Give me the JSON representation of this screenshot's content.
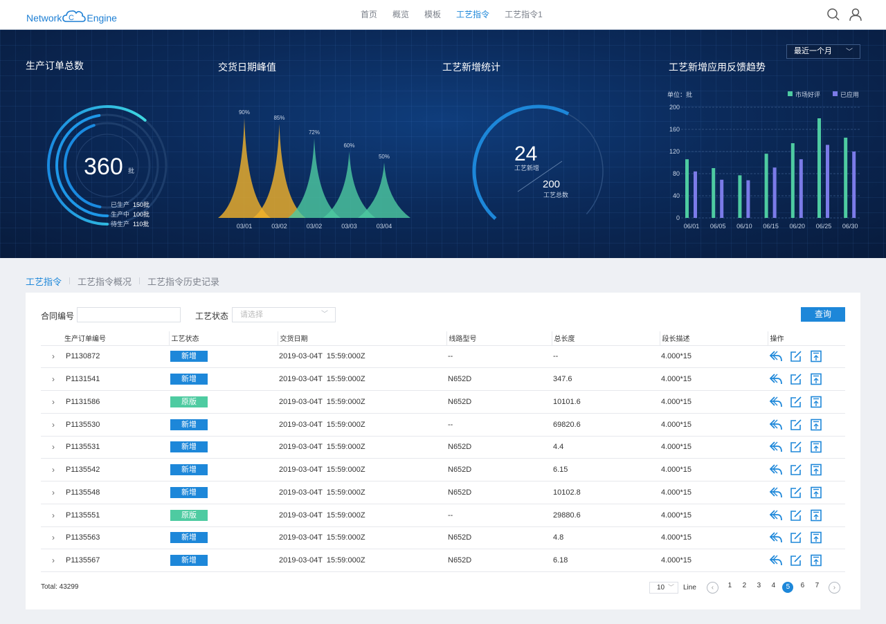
{
  "header": {
    "logo_left": "Network",
    "logo_right": "Engine",
    "nav": [
      "首页",
      "概览",
      "模板",
      "工艺指令",
      "工艺指令1"
    ],
    "active_nav": 3
  },
  "dashboard": {
    "period_select": "最近一个月",
    "orders": {
      "title": "生产订单总数",
      "total": "360",
      "unit": "批",
      "items": [
        {
          "label": "已生产",
          "value": "150批",
          "fraction": 0.42
        },
        {
          "label": "生产中",
          "value": "100批",
          "fraction": 0.28
        },
        {
          "label": "待生产",
          "value": "110批",
          "fraction": 0.31
        }
      ]
    },
    "delivery": {
      "title": "交货日期峰值"
    },
    "process_stats": {
      "title": "工艺新增统计",
      "new_value": "24",
      "new_label": "工艺新增",
      "total_value": "200",
      "total_label": "工艺总数",
      "fraction": 0.12
    },
    "trend": {
      "title": "工艺新增应用反馈趋势",
      "unit_label": "单位：批"
    }
  },
  "chart_data": [
    {
      "type": "area",
      "title": "交货日期峰值",
      "categories": [
        "03/01",
        "03/02",
        "03/02",
        "03/03",
        "03/04"
      ],
      "values": [
        90,
        85,
        72,
        60,
        50
      ],
      "labels": [
        "90%",
        "85%",
        "72%",
        "60%",
        "50%"
      ],
      "colors": [
        "#f2b32a",
        "#f2b32a",
        "#4ecba1",
        "#4ecba1",
        "#4ecba1"
      ],
      "ylim": [
        0,
        100
      ]
    },
    {
      "type": "bar",
      "title": "工艺新增应用反馈趋势",
      "categories": [
        "06/01",
        "06/05",
        "06/10",
        "06/15",
        "06/20",
        "06/25",
        "06/30"
      ],
      "series": [
        {
          "name": "市场好评",
          "color": "#4ecba1",
          "values": [
            106,
            90,
            77,
            116,
            135,
            180,
            145
          ]
        },
        {
          "name": "已应用",
          "color": "#7b7be8",
          "values": [
            84,
            69,
            68,
            91,
            106,
            132,
            120
          ]
        }
      ],
      "ylim": [
        0,
        200
      ],
      "yticks": [
        "0",
        "40",
        "80",
        "120",
        "160",
        "200"
      ],
      "legend": "top-right",
      "grid": true
    }
  ],
  "tabs": [
    "工艺指令",
    "工艺指令概况",
    "工艺指令历史记录"
  ],
  "filters": {
    "contract_label": "合同编号",
    "contract_value": "",
    "status_label": "工艺状态",
    "status_placeholder": "请选择",
    "query_button": "查询"
  },
  "table": {
    "columns": [
      "生产订单编号",
      "工艺状态",
      "交货日期",
      "线路型号",
      "总长度",
      "段长描述",
      "操作"
    ],
    "rows": [
      {
        "id": "P1130872",
        "status": "新增",
        "kind": "new",
        "date": "2019-03-04T  15:59:000Z",
        "model": "--",
        "length": "--",
        "desc": "4.000*15"
      },
      {
        "id": "P1131541",
        "status": "新增",
        "kind": "new",
        "date": "2019-03-04T  15:59:000Z",
        "model": "N652D",
        "length": "347.6",
        "desc": "4.000*15"
      },
      {
        "id": "P1131586",
        "status": "原版",
        "kind": "orig",
        "date": "2019-03-04T  15:59:000Z",
        "model": "N652D",
        "length": "10101.6",
        "desc": "4.000*15"
      },
      {
        "id": "P1135530",
        "status": "新增",
        "kind": "new",
        "date": "2019-03-04T  15:59:000Z",
        "model": "--",
        "length": "69820.6",
        "desc": "4.000*15"
      },
      {
        "id": "P1135531",
        "status": "新增",
        "kind": "new",
        "date": "2019-03-04T  15:59:000Z",
        "model": "N652D",
        "length": "4.4",
        "desc": "4.000*15"
      },
      {
        "id": "P1135542",
        "status": "新增",
        "kind": "new",
        "date": "2019-03-04T  15:59:000Z",
        "model": "N652D",
        "length": "6.15",
        "desc": "4.000*15"
      },
      {
        "id": "P1135548",
        "status": "新增",
        "kind": "new",
        "date": "2019-03-04T  15:59:000Z",
        "model": "N652D",
        "length": "10102.8",
        "desc": "4.000*15"
      },
      {
        "id": "P1135551",
        "status": "原版",
        "kind": "orig",
        "date": "2019-03-04T  15:59:000Z",
        "model": "--",
        "length": "29880.6",
        "desc": "4.000*15"
      },
      {
        "id": "P1135563",
        "status": "新增",
        "kind": "new",
        "date": "2019-03-04T  15:59:000Z",
        "model": "N652D",
        "length": "4.8",
        "desc": "4.000*15"
      },
      {
        "id": "P1135567",
        "status": "新增",
        "kind": "new",
        "date": "2019-03-04T  15:59:000Z",
        "model": "N652D",
        "length": "6.18",
        "desc": "4.000*15"
      }
    ]
  },
  "pagination": {
    "total": "Total: 43299",
    "page_size": "10",
    "line_label": "Line",
    "pages": [
      "1",
      "2",
      "3",
      "4",
      "5",
      "6",
      "7"
    ],
    "active_page": 4
  },
  "icons": [
    "search-icon",
    "user-icon",
    "cloud-icon",
    "chevron-right-icon",
    "reply-icon",
    "edit-icon",
    "save-icon"
  ]
}
